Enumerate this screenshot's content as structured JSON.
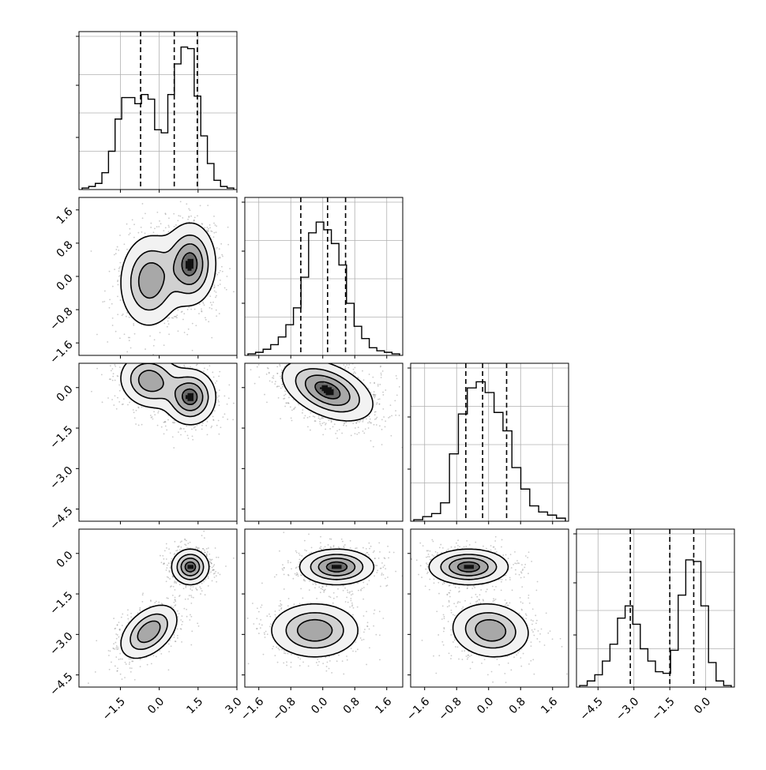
{
  "chart_data": {
    "type": "corner",
    "title": "",
    "grid": true,
    "variables": [
      {
        "xlim": [
          -3.1,
          3.0
        ],
        "ylim": [
          -1.9,
          1.9
        ],
        "hist_ylim": [
          0,
          1.0
        ],
        "x_ticks": [
          -1.5,
          0.0,
          1.5,
          3.0
        ],
        "x_tick_labels": [
          "−1.5",
          "0.0",
          "1.5",
          "3.0"
        ],
        "y_ticks": [
          -1.6,
          -0.8,
          0.0,
          0.8,
          1.6
        ],
        "y_tick_labels": [
          "−1.6",
          "−0.8",
          "0.0",
          "0.8",
          "1.6"
        ],
        "quantiles": [
          -0.72,
          0.58,
          1.47
        ],
        "hist": [
          0.01,
          0.02,
          0.04,
          0.11,
          0.25,
          0.46,
          0.6,
          0.6,
          0.56,
          0.62,
          0.59,
          0.39,
          0.37,
          0.62,
          0.82,
          0.93,
          0.92,
          0.61,
          0.35,
          0.17,
          0.06,
          0.02,
          0.01
        ]
      },
      {
        "xlim": [
          -1.95,
          2.0
        ],
        "ylim": [
          -1.9,
          1.9
        ],
        "hist_ylim": [
          0,
          1.0
        ],
        "x_ticks": [
          -1.6,
          -0.8,
          0.0,
          0.8,
          1.6
        ],
        "x_tick_labels": [
          "−1.6",
          "−0.8",
          "0.0",
          "0.8",
          "1.6"
        ],
        "y_ticks": [
          -1.6,
          -0.8,
          0.0,
          0.8,
          1.6
        ],
        "y_tick_labels": [
          "−1.6",
          "−0.8",
          "0.0",
          "0.8",
          "1.6"
        ],
        "quantiles": [
          -0.55,
          0.12,
          0.57
        ],
        "hist": [
          0.01,
          0.02,
          0.04,
          0.07,
          0.12,
          0.2,
          0.31,
          0.51,
          0.8,
          0.87,
          0.82,
          0.73,
          0.59,
          0.34,
          0.19,
          0.11,
          0.05,
          0.03,
          0.02,
          0.01
        ]
      },
      {
        "xlim": [
          -1.95,
          2.0
        ],
        "ylim": [
          -4.95,
          0.9
        ],
        "hist_ylim": [
          0,
          1.0
        ],
        "x_ticks": [
          -1.6,
          -0.8,
          0.0,
          0.8,
          1.6
        ],
        "x_tick_labels": [
          "−1.6",
          "−0.8",
          "0.0",
          "0.8",
          "1.6"
        ],
        "y_ticks": [
          -4.5,
          -3.0,
          -1.5,
          0.0
        ],
        "y_tick_labels": [
          "−4.5",
          "−3.0",
          "−1.5",
          "0.0"
        ],
        "quantiles": [
          -0.57,
          -0.15,
          0.45
        ],
        "hist": [
          0.01,
          0.03,
          0.05,
          0.12,
          0.44,
          0.7,
          0.87,
          0.91,
          0.84,
          0.71,
          0.59,
          0.35,
          0.21,
          0.1,
          0.06,
          0.04,
          0.02
        ]
      },
      {
        "xlim": [
          -5.4,
          1.2
        ],
        "ylim": [
          -4.95,
          0.9
        ],
        "hist_ylim": [
          0,
          1.0
        ],
        "x_ticks": [
          -4.5,
          -3.0,
          -1.5,
          0.0
        ],
        "x_tick_labels": [
          "−4.5",
          "−3.0",
          "−1.5",
          "0.0"
        ],
        "y_ticks": [
          -4.5,
          -3.0,
          -1.5,
          0.0
        ],
        "y_tick_labels": [
          "−4.5",
          "−3.0",
          "−1.5",
          "0.0"
        ],
        "quantiles": [
          -3.15,
          -1.5,
          -0.5
        ],
        "hist": [
          0.01,
          0.04,
          0.08,
          0.17,
          0.28,
          0.45,
          0.53,
          0.41,
          0.25,
          0.17,
          0.1,
          0.09,
          0.24,
          0.6,
          0.83,
          0.82,
          0.53,
          0.16,
          0.04,
          0.01
        ]
      }
    ],
    "pairs": [
      {
        "row": 1,
        "col": 0,
        "modes": [
          {
            "cx": -0.35,
            "cy": -0.1,
            "sx": 0.58,
            "sy": 0.55,
            "rho": 0.05,
            "w": 0.45
          },
          {
            "cx": 1.2,
            "cy": 0.3,
            "sx": 0.48,
            "sy": 0.48,
            "rho": 0.0,
            "w": 0.55
          }
        ]
      },
      {
        "row": 2,
        "col": 0,
        "modes": [
          {
            "cx": -0.35,
            "cy": 0.25,
            "sx": 0.58,
            "sy": 0.5,
            "rho": -0.1,
            "w": 0.45
          },
          {
            "cx": 1.2,
            "cy": -0.35,
            "sx": 0.48,
            "sy": 0.5,
            "rho": 0.0,
            "w": 0.55
          }
        ]
      },
      {
        "row": 2,
        "col": 1,
        "modes": [
          {
            "cx": 0.12,
            "cy": -0.1,
            "sx": 0.55,
            "sy": 0.55,
            "rho": -0.45,
            "w": 1.0
          }
        ]
      },
      {
        "row": 3,
        "col": 0,
        "modes": [
          {
            "cx": -0.4,
            "cy": -2.9,
            "sx": 0.55,
            "sy": 0.5,
            "rho": 0.45,
            "w": 0.45
          },
          {
            "cx": 1.2,
            "cy": -0.5,
            "sx": 0.35,
            "sy": 0.32,
            "rho": 0.0,
            "w": 0.55
          }
        ]
      },
      {
        "row": 3,
        "col": 1,
        "modes": [
          {
            "cx": -0.2,
            "cy": -2.85,
            "sx": 0.55,
            "sy": 0.5,
            "rho": 0.0,
            "w": 0.45
          },
          {
            "cx": 0.35,
            "cy": -0.5,
            "sx": 0.45,
            "sy": 0.32,
            "rho": 0.0,
            "w": 0.55
          }
        ]
      },
      {
        "row": 3,
        "col": 2,
        "modes": [
          {
            "cx": 0.05,
            "cy": -2.85,
            "sx": 0.48,
            "sy": 0.5,
            "rho": -0.1,
            "w": 0.45
          },
          {
            "cx": -0.5,
            "cy": -0.5,
            "sx": 0.48,
            "sy": 0.32,
            "rho": 0.0,
            "w": 0.55
          }
        ]
      }
    ]
  }
}
